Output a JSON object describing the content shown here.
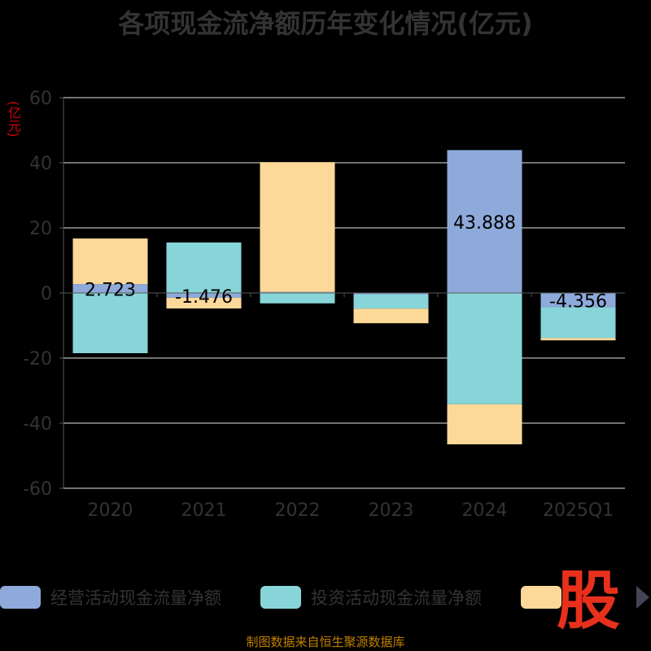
{
  "chart_data": {
    "type": "bar",
    "stacked": true,
    "title": "各项现金流净额历年变化情况(亿元)",
    "unit_label": "(亿元)",
    "categories": [
      "2020",
      "2021",
      "2022",
      "2023",
      "2024",
      "2025Q1"
    ],
    "ylim": [
      -60,
      60
    ],
    "yticks": [
      -60,
      -40,
      -20,
      0,
      20,
      40,
      60
    ],
    "grid": true,
    "legend_position": "bottom",
    "series": [
      {
        "name": "经营活动现金流量净额",
        "color": "#8eaadb",
        "values": [
          2.723,
          -1.476,
          0.3,
          -0.5,
          43.888,
          -4.356
        ],
        "labels": [
          "2.723",
          "-1.476",
          "",
          "",
          "43.888",
          "-4.356"
        ]
      },
      {
        "name": "投资活动现金流量净额",
        "color": "#87d5d9",
        "values": [
          -18.5,
          15.5,
          -3.2,
          -4.3,
          -34.2,
          -9.5
        ],
        "labels": []
      },
      {
        "name": "",
        "color": "#fdd999",
        "values": [
          14.0,
          -3.3,
          39.9,
          -4.5,
          -12.3,
          -0.7
        ],
        "labels": []
      }
    ]
  },
  "footer_text": "制图数据来自恒生聚源数据库",
  "logo_text": "股"
}
